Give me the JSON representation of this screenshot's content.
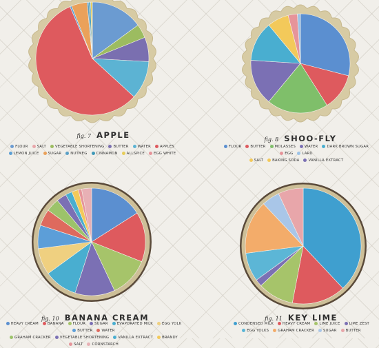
{
  "chart_data": [
    {
      "type": "pie",
      "title": "APPLE",
      "fig_label": "fig. 7",
      "border": "scalloped",
      "legend_rows": [
        [
          "Flour",
          "Salt",
          "Vegetable shortening",
          "Butter",
          "Water",
          "Apples"
        ],
        [
          "Lemon juice",
          "Sugar",
          "Nutmeg",
          "Cinnamon",
          "Allspice",
          "Egg white"
        ]
      ],
      "slices": [
        {
          "label": "Flour",
          "value": 15,
          "color": "#6b9bd1"
        },
        {
          "label": "Vegetable shortening",
          "value": 4,
          "color": "#9cbc60"
        },
        {
          "label": "Butter",
          "value": 7,
          "color": "#7a6fb0"
        },
        {
          "label": "Water",
          "value": 11,
          "color": "#5cb3d3"
        },
        {
          "label": "Apples",
          "value": 57,
          "color": "#de5a5e"
        },
        {
          "label": "Lemon juice",
          "value": 0.5,
          "color": "#5c9fd4"
        },
        {
          "label": "Sugar",
          "value": 4.5,
          "color": "#eaa15a"
        },
        {
          "label": "Nutmeg",
          "value": 0.5,
          "color": "#5aa0c6"
        },
        {
          "label": "Cinnamon",
          "value": 0.5,
          "color": "#3f99b8"
        },
        {
          "label": "Allspice",
          "value": 0.5,
          "color": "#e7cd5a"
        }
      ]
    },
    {
      "type": "pie",
      "title": "SHOO-FLY",
      "fig_label": "fig. 8",
      "border": "scalloped",
      "legend_rows": [
        [
          "Flour",
          "Butter",
          "Molasses",
          "Water",
          "Dark brown sugar",
          "Egg",
          "Lard"
        ],
        [
          "Salt",
          "Baking soda",
          "Vanilla extract"
        ]
      ],
      "slices": [
        {
          "label": "Flour",
          "value": 29,
          "color": "#5b8fd0"
        },
        {
          "label": "Butter",
          "value": 12,
          "color": "#de5a5e"
        },
        {
          "label": "Molasses",
          "value": 20,
          "color": "#7fbf6a"
        },
        {
          "label": "Water",
          "value": 15,
          "color": "#7b70b4"
        },
        {
          "label": "Dark brown sugar",
          "value": 13,
          "color": "#49aed0"
        },
        {
          "label": "Salt",
          "value": 7,
          "color": "#f3c95a"
        },
        {
          "label": "Egg",
          "value": 3,
          "color": "#e6949a"
        },
        {
          "label": "Lard",
          "value": 1,
          "color": "#9cc3e8"
        }
      ]
    },
    {
      "type": "pie",
      "title": "BANANA CREAM",
      "fig_label": "fig. 10",
      "border": "ring",
      "legend_rows": [
        [
          "Heavy cream",
          "Banana",
          "Flour",
          "Sugar",
          "Evaporated milk",
          "Egg yolk",
          "Butter",
          "Water"
        ],
        [
          "Graham cracker",
          "Vegetable shortening",
          "Vanilla extract",
          "Brandy",
          "Salt",
          "Cornstarch"
        ]
      ],
      "slices": [
        {
          "label": "Heavy cream",
          "value": 16,
          "color": "#5b8fd0"
        },
        {
          "label": "Banana",
          "value": 15,
          "color": "#de5a5e"
        },
        {
          "label": "Flour",
          "value": 12,
          "color": "#a6c46a"
        },
        {
          "label": "Sugar",
          "value": 12,
          "color": "#7b70b4"
        },
        {
          "label": "Evaporated milk",
          "value": 10,
          "color": "#49aed0"
        },
        {
          "label": "Egg yolk",
          "value": 8,
          "color": "#efd080"
        },
        {
          "label": "Butter",
          "value": 7,
          "color": "#5c9ed8"
        },
        {
          "label": "Water",
          "value": 5,
          "color": "#de6a5e"
        },
        {
          "label": "Graham cracker",
          "value": 4,
          "color": "#9cc36a"
        },
        {
          "label": "Vegetable shortening",
          "value": 3,
          "color": "#7b70b4"
        },
        {
          "label": "Vanilla extract",
          "value": 2,
          "color": "#49aed0"
        },
        {
          "label": "Brandy",
          "value": 2,
          "color": "#f3c95a"
        },
        {
          "label": "Salt",
          "value": 1,
          "color": "#e6949a"
        },
        {
          "label": "Cornstarch",
          "value": 3,
          "color": "#e8b0b5"
        }
      ]
    },
    {
      "type": "pie",
      "title": "KEY LIME",
      "fig_label": "fig. 11",
      "border": "ring",
      "legend_rows": [
        [
          "Condensed milk",
          "Heavy cream",
          "Lime juice",
          "Lime zest"
        ],
        [
          "Egg yolks",
          "Graham cracker",
          "Sugar",
          "Butter"
        ]
      ],
      "slices": [
        {
          "label": "Condensed milk",
          "value": 38,
          "color": "#3f9fcf"
        },
        {
          "label": "Heavy cream",
          "value": 15,
          "color": "#de5a5e"
        },
        {
          "label": "Lime juice",
          "value": 10,
          "color": "#a6c46a"
        },
        {
          "label": "Lime zest",
          "value": 2,
          "color": "#7b70b4"
        },
        {
          "label": "Egg yolks",
          "value": 8,
          "color": "#5cb6d6"
        },
        {
          "label": "Graham cracker",
          "value": 15,
          "color": "#f3ac6a"
        },
        {
          "label": "Sugar",
          "value": 5,
          "color": "#a9c6e8"
        },
        {
          "label": "Butter",
          "value": 7,
          "color": "#e8a6aa"
        }
      ]
    }
  ],
  "legend_colors": {
    "Apples": "#de5a5e",
    "Flour": "#6b9bd1",
    "Salt": "#e8a6aa",
    "Vegetable shortening": "#9cbc60",
    "Butter": "#7a6fb0",
    "Water": "#5cb3d3",
    "Lemon juice": "#5c9fd4",
    "Sugar": "#eaa15a",
    "Nutmeg": "#5aa0c6",
    "Cinnamon": "#3f99b8",
    "Allspice": "#e7cd5a",
    "Egg white": "#e6949a",
    "Molasses": "#7fbf6a",
    "Dark brown sugar": "#49aed0",
    "Egg": "#e6949a",
    "Lard": "#9cc3e8",
    "Baking soda": "#f3c95a",
    "Vanilla extract": "#7b70b4",
    "Heavy cream": "#5b8fd0",
    "Banana": "#de5a5e",
    "Evaporated milk": "#49aed0",
    "Egg yolk": "#efd080",
    "Graham cracker": "#9cc36a",
    "Brandy": "#f3c95a",
    "Cornstarch": "#e8b0b5",
    "Condensed milk": "#3f9fcf",
    "Lime juice": "#a6c46a",
    "Lime zest": "#7b70b4",
    "Egg yolks": "#5cb6d6"
  }
}
